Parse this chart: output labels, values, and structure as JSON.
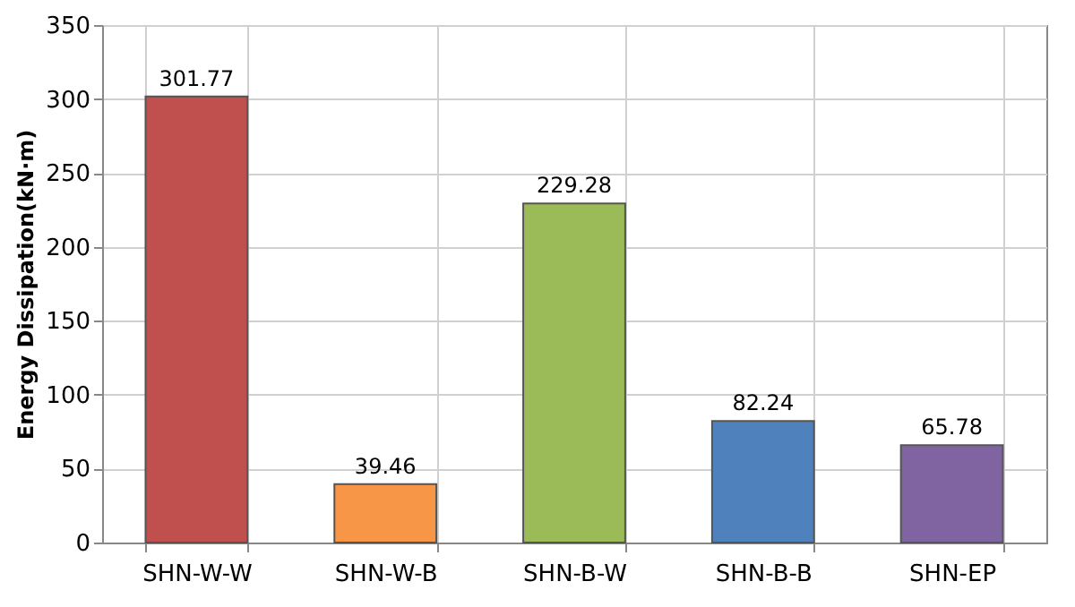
{
  "chart_data": {
    "type": "bar",
    "ylabel": "Energy Dissipation(kN·m)",
    "categories": [
      "SHN-W-W",
      "SHN-W-B",
      "SHN-B-W",
      "SHN-B-B",
      "SHN-EP"
    ],
    "values": [
      301.77,
      39.46,
      229.28,
      82.24,
      65.78
    ],
    "colors": [
      "#c0504d",
      "#f79646",
      "#9bbb59",
      "#4f81bd",
      "#8064a2"
    ],
    "ylim": [
      0,
      350
    ],
    "yticks": [
      0,
      50,
      100,
      150,
      200,
      250,
      300,
      350
    ],
    "grid": true,
    "data_labels": true
  }
}
